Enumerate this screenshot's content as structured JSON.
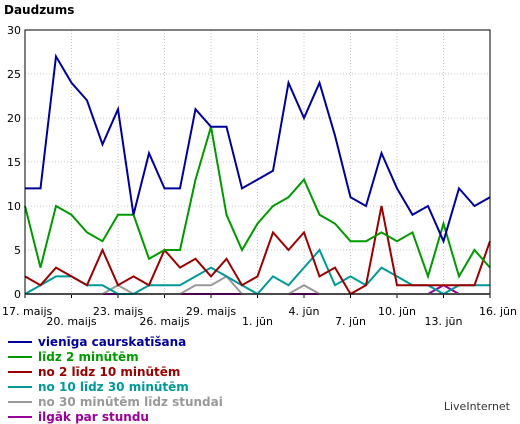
{
  "brand": "LiveInternet",
  "chart_data": {
    "type": "line",
    "title": "Daudzums",
    "xlabel": "",
    "ylabel": "",
    "ylim": [
      0,
      30
    ],
    "yticks": [
      0,
      5,
      10,
      15,
      20,
      25,
      30
    ],
    "grid": true,
    "legend_position": "bottom",
    "x": [
      "17. maijs",
      "18. maijs",
      "19. maijs",
      "20. maijs",
      "21. maijs",
      "22. maijs",
      "23. maijs",
      "24. maijs",
      "25. maijs",
      "26. maijs",
      "27. maijs",
      "28. maijs",
      "29. maijs",
      "30. maijs",
      "31. maijs",
      "1. jūn",
      "2. jūn",
      "3. jūn",
      "4. jūn",
      "5. jūn",
      "6. jūn",
      "7. jūn",
      "8. jūn",
      "9. jūn",
      "10. jūn",
      "11. jūn",
      "12. jūn",
      "13. jūn",
      "14. jūn",
      "15. jūn",
      "16. jūn"
    ],
    "xtick_labels": [
      {
        "index": 0,
        "label": "17. maijs",
        "row": 0
      },
      {
        "index": 3,
        "label": "20. maijs",
        "row": 1
      },
      {
        "index": 6,
        "label": "23. maijs",
        "row": 0
      },
      {
        "index": 9,
        "label": "26. maijs",
        "row": 1
      },
      {
        "index": 12,
        "label": "29. maijs",
        "row": 0
      },
      {
        "index": 15,
        "label": "1. jūn",
        "row": 1
      },
      {
        "index": 18,
        "label": "4. jūn",
        "row": 0
      },
      {
        "index": 21,
        "label": "7. jūn",
        "row": 1
      },
      {
        "index": 24,
        "label": "10. jūn",
        "row": 0
      },
      {
        "index": 27,
        "label": "13. jūn",
        "row": 1
      },
      {
        "index": 30,
        "label": "16. jūn",
        "row": 0
      }
    ],
    "series": [
      {
        "name": "vienīga caurskatīšana",
        "color": "#000099",
        "values": [
          12,
          12,
          27,
          24,
          22,
          17,
          21,
          9,
          16,
          12,
          12,
          21,
          19,
          19,
          12,
          13,
          14,
          24,
          20,
          24,
          18,
          11,
          10,
          16,
          12,
          9,
          10,
          6,
          12,
          10,
          11
        ]
      },
      {
        "name": "līdz 2 minūtēm",
        "color": "#009900",
        "values": [
          10,
          3,
          10,
          9,
          7,
          6,
          9,
          9,
          4,
          5,
          5,
          13,
          19,
          9,
          5,
          8,
          10,
          11,
          13,
          9,
          8,
          6,
          6,
          7,
          6,
          7,
          2,
          8,
          2,
          5,
          3
        ]
      },
      {
        "name": "no 2 līdz 10 minūtēm",
        "color": "#990000",
        "values": [
          2,
          1,
          3,
          2,
          1,
          5,
          1,
          2,
          1,
          5,
          3,
          4,
          2,
          4,
          1,
          2,
          7,
          5,
          7,
          2,
          3,
          0,
          1,
          10,
          1,
          1,
          1,
          1,
          1,
          1,
          6
        ]
      },
      {
        "name": "no 10 līdz 30 minūtēm",
        "color": "#009999",
        "values": [
          0,
          1,
          2,
          2,
          1,
          1,
          0,
          0,
          1,
          1,
          1,
          2,
          3,
          2,
          1,
          0,
          2,
          1,
          3,
          5,
          1,
          2,
          1,
          3,
          2,
          1,
          1,
          0,
          1,
          1,
          1
        ]
      },
      {
        "name": "no 30 minūtēm līdz stundai",
        "color": "#999999",
        "values": [
          0,
          0,
          0,
          0,
          0,
          0,
          1,
          0,
          0,
          0,
          0,
          1,
          1,
          2,
          0,
          0,
          0,
          0,
          1,
          0,
          0,
          0,
          0,
          0,
          0,
          0,
          0,
          0,
          0,
          0,
          0
        ]
      },
      {
        "name": "ilgāk par stundu",
        "color": "#990099",
        "values": [
          0,
          0,
          0,
          0,
          0,
          0,
          0,
          0,
          0,
          0,
          0,
          0,
          0,
          0,
          0,
          0,
          0,
          0,
          0,
          0,
          0,
          0,
          0,
          0,
          0,
          0,
          0,
          1,
          0,
          0,
          0
        ]
      }
    ]
  }
}
